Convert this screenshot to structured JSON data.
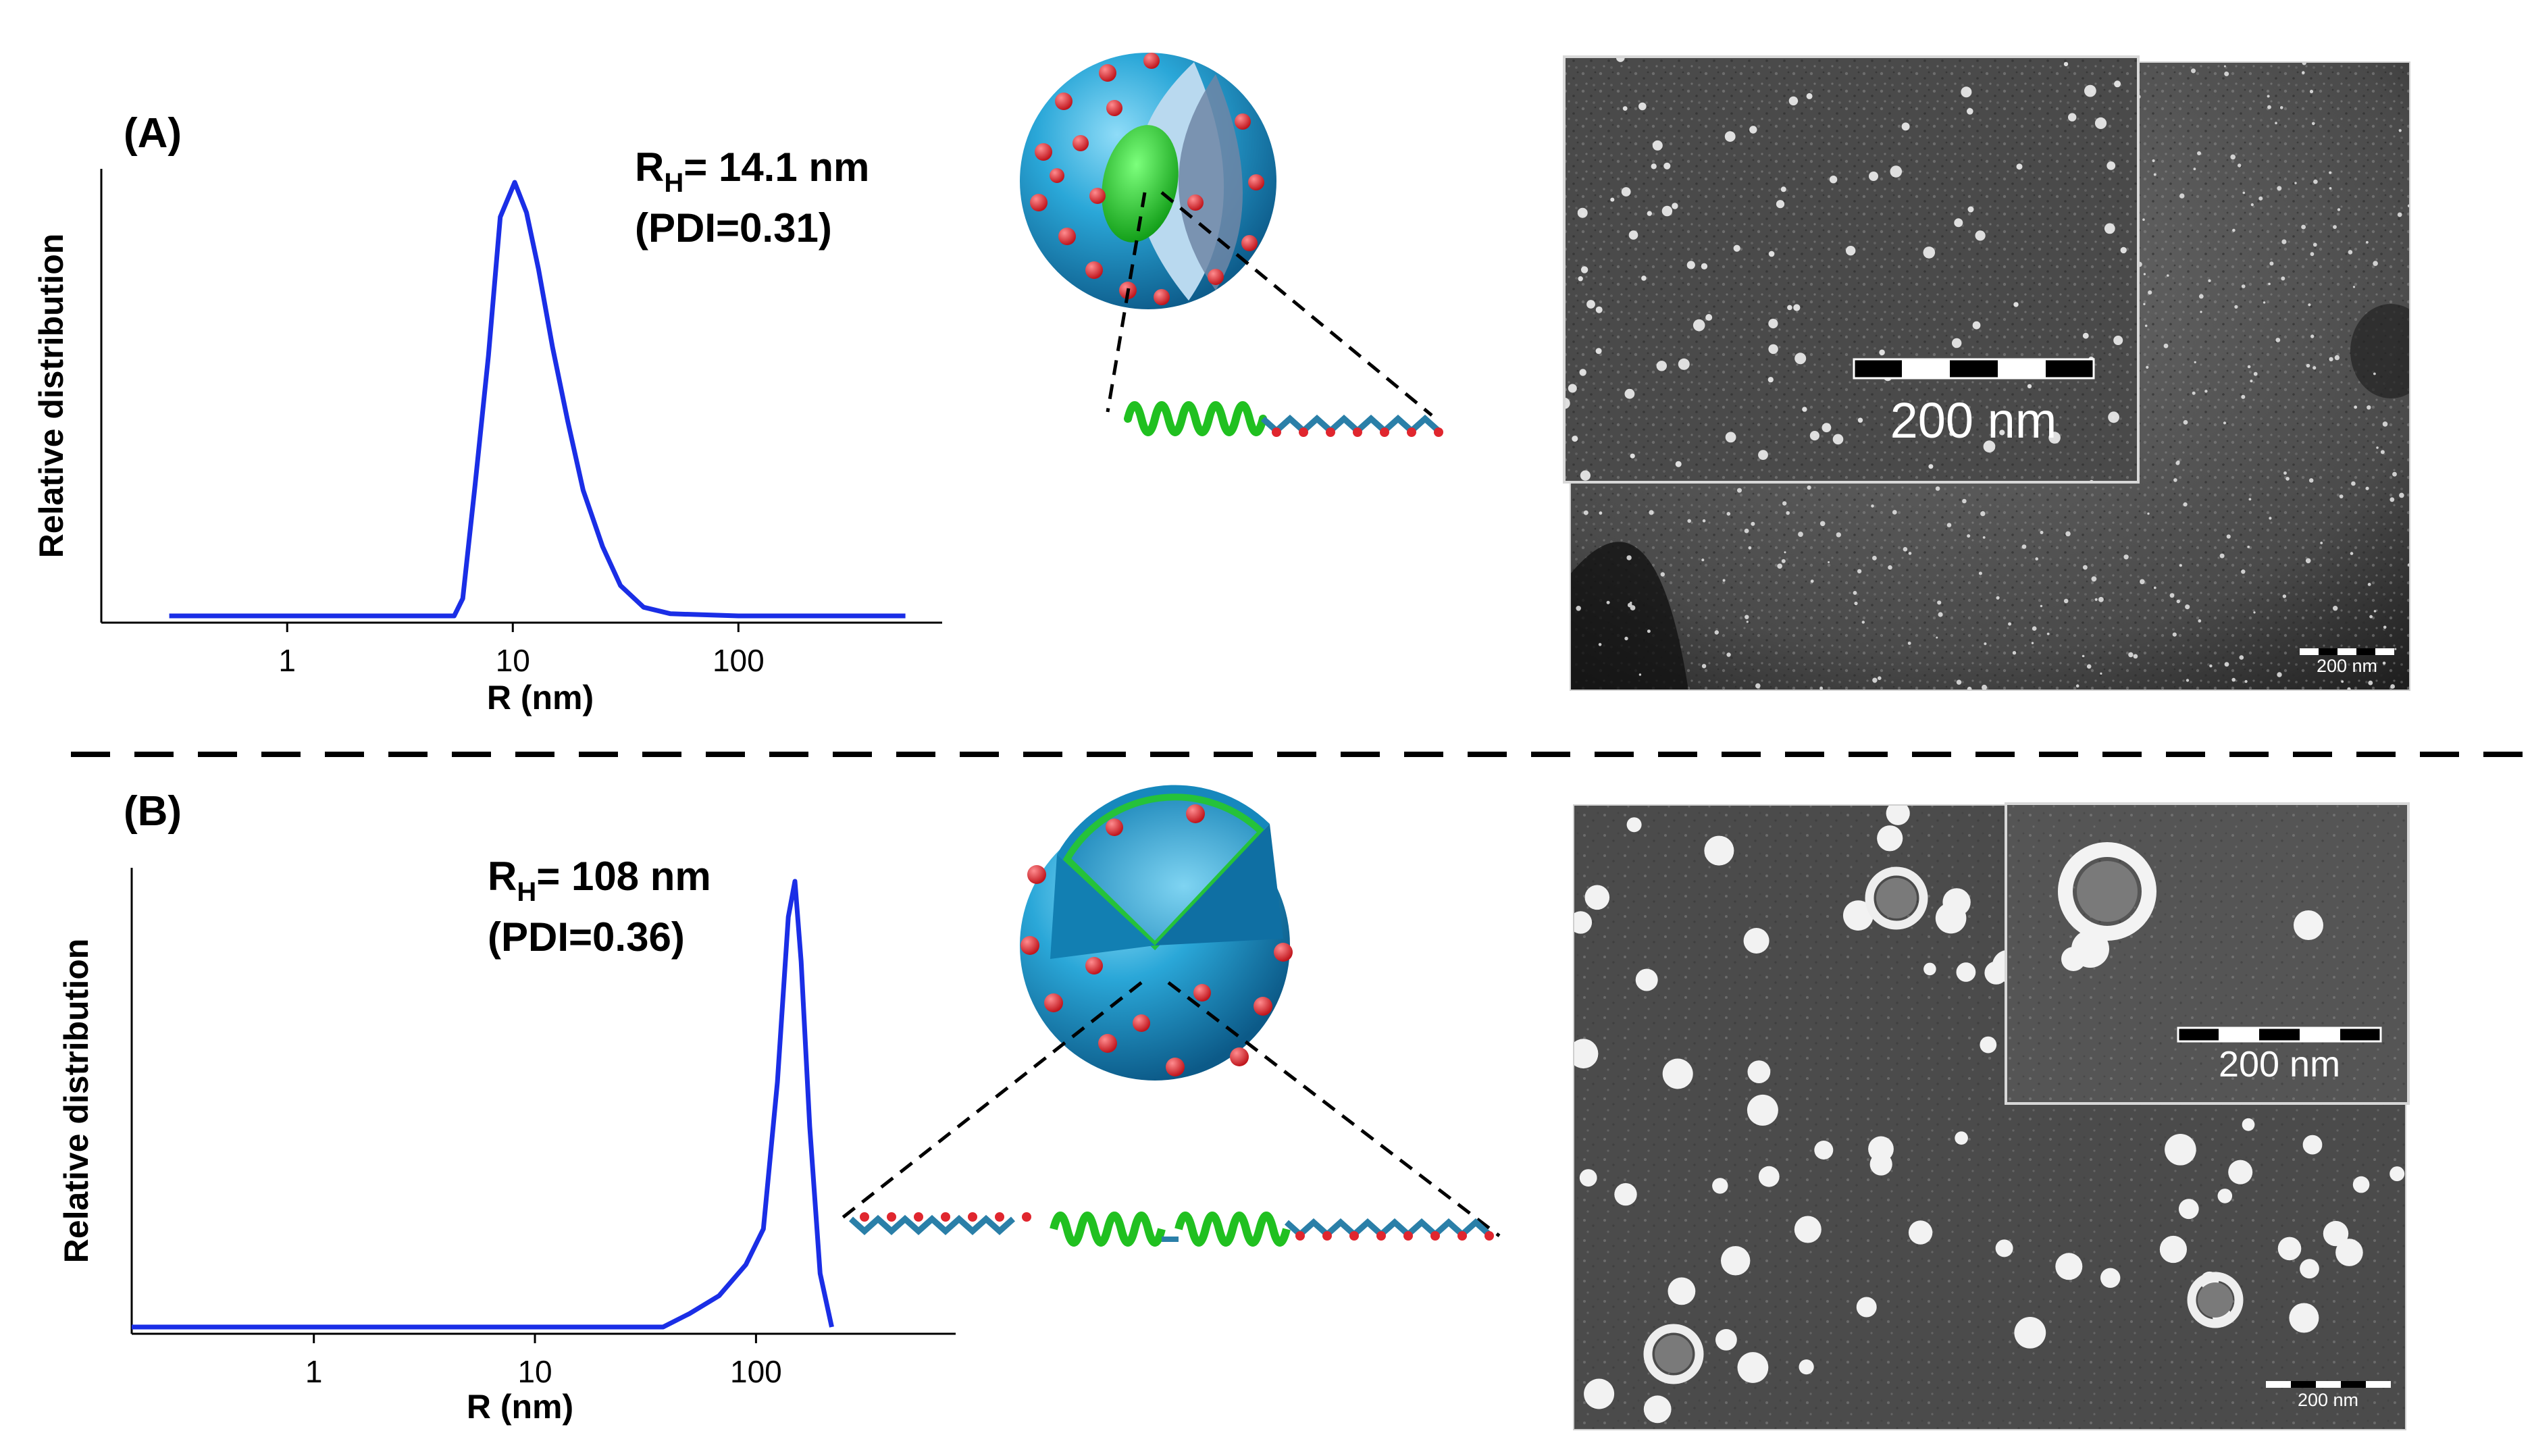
{
  "panels": {
    "a": {
      "label": "(A)",
      "rh_label": "R",
      "rh_sub": "H",
      "rh_value": "= 14.1 nm",
      "pdi": "(PDI=0.31)"
    },
    "b": {
      "label": "(B)",
      "rh_label": "R",
      "rh_sub": "H",
      "rh_value": "= 108 nm",
      "pdi": "(PDI=0.36)"
    }
  },
  "micrographs": {
    "a_inset_scale": "200 nm",
    "a_main_scale": "200 nm",
    "b_inset_scale": "200 nm",
    "b_main_scale": "200 nm"
  },
  "colors": {
    "curve": "#1a2ee6",
    "sphere_blue": "#2aa7d8",
    "core_green": "#1ec81e",
    "dots_red": "#e0262e"
  },
  "chart_data": [
    {
      "type": "line",
      "panel": "A",
      "xlabel": "R (nm)",
      "ylabel": "Relative distribution",
      "x_scale": "log",
      "xlim": [
        0.15,
        800
      ],
      "ylim": [
        0,
        1
      ],
      "x_ticks": [
        1,
        10,
        100
      ],
      "x_tick_labels": [
        "1",
        "10",
        "100"
      ],
      "series": [
        {
          "x": [
            0.3,
            1,
            3,
            5.5,
            6,
            6.8,
            7.8,
            8.8,
            10.2,
            11.5,
            13,
            15,
            17.5,
            20.5,
            25,
            30,
            38,
            50,
            100,
            300,
            550
          ],
          "y": [
            0,
            0,
            0,
            0,
            0.04,
            0.3,
            0.6,
            0.92,
            1.0,
            0.93,
            0.8,
            0.62,
            0.45,
            0.29,
            0.16,
            0.07,
            0.02,
            0.005,
            0,
            0,
            0
          ]
        }
      ]
    },
    {
      "type": "line",
      "panel": "B",
      "xlabel": "R (nm)",
      "ylabel": "Relative distribution",
      "x_scale": "log",
      "xlim": [
        0.15,
        800
      ],
      "ylim": [
        0,
        1
      ],
      "x_ticks": [
        1,
        10,
        100
      ],
      "x_tick_labels": [
        "1",
        "10",
        "100"
      ],
      "series": [
        {
          "x": [
            0.15,
            1,
            10,
            38,
            50,
            68,
            90,
            108,
            125,
            140,
            150,
            160,
            175,
            195,
            220
          ],
          "y": [
            0,
            0,
            0,
            0,
            0.03,
            0.07,
            0.14,
            0.22,
            0.55,
            0.92,
            1.0,
            0.82,
            0.45,
            0.12,
            0
          ]
        }
      ]
    }
  ]
}
